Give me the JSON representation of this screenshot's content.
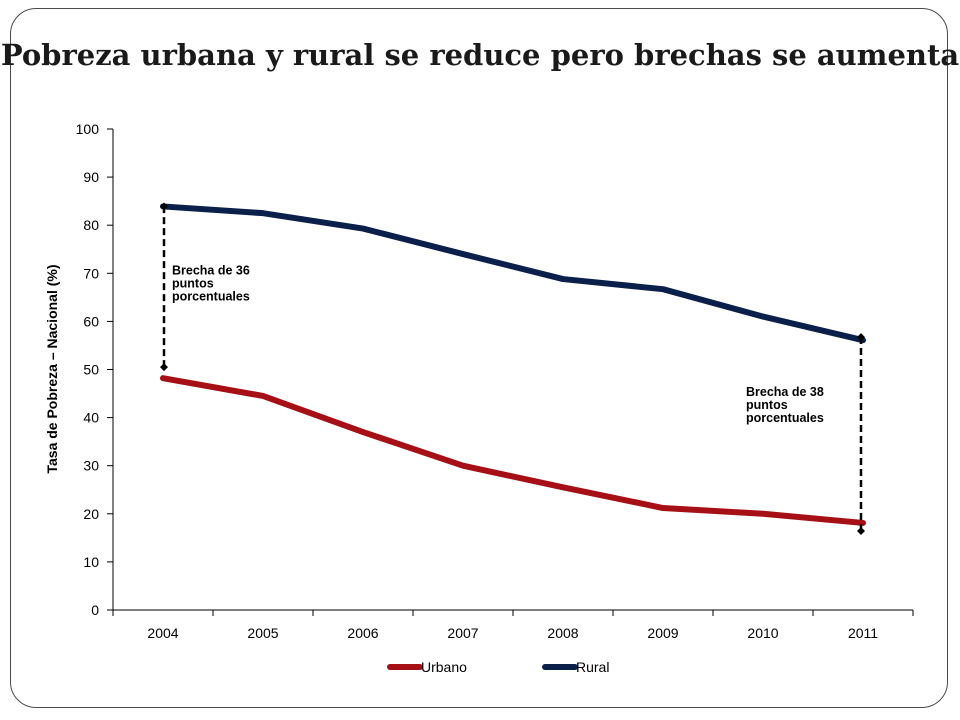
{
  "title": "Pobreza urbana y rural se reduce pero brechas se aumenta",
  "chart_data": {
    "type": "line",
    "ylabel": "Tasa de Pobreza – Nacional (%)",
    "xlabel": "",
    "ylim": [
      0,
      100
    ],
    "yticks": [
      0,
      10,
      20,
      30,
      40,
      50,
      60,
      70,
      80,
      90,
      100
    ],
    "categories": [
      "2004",
      "2005",
      "2006",
      "2007",
      "2008",
      "2009",
      "2010",
      "2011"
    ],
    "series": [
      {
        "name": "Urbano",
        "color": "#a50f15",
        "values": [
          48.2,
          44.5,
          37,
          30,
          25.5,
          21.2,
          20,
          18.1
        ]
      },
      {
        "name": "Rural",
        "color": "#0a1f4a",
        "values": [
          83.9,
          82.5,
          79.3,
          74,
          68.8,
          66.7,
          61,
          56.1
        ]
      }
    ],
    "annotations": [
      {
        "lines": [
          "Brecha de 36",
          "puntos",
          "porcentuales"
        ],
        "category": "2004",
        "from": 48.2,
        "to": 83.9
      },
      {
        "lines": [
          "Brecha de 38",
          "puntos",
          "porcentuales"
        ],
        "category": "2011",
        "from": 18.1,
        "to": 56.1
      }
    ],
    "legend_position": "bottom",
    "grid": false
  }
}
